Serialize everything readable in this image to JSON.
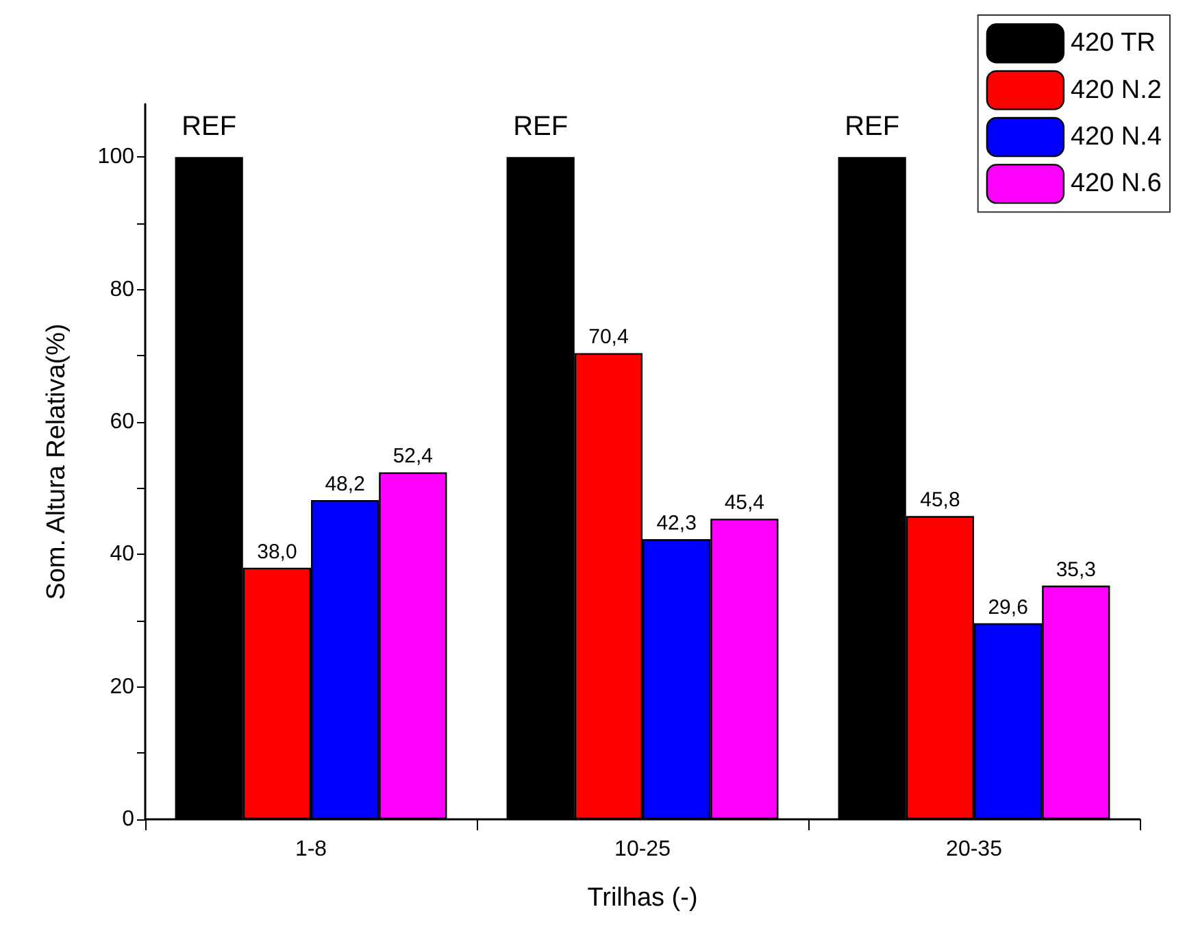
{
  "chart_data": {
    "type": "bar",
    "xlabel": "Trilhas (-)",
    "ylabel": "Som. Altura Relativa(%)",
    "categories": [
      "1-8",
      "10-25",
      "20-35"
    ],
    "series": [
      {
        "name": "420 TR",
        "color": "#000000",
        "values": [
          100,
          100,
          100
        ],
        "value_labels": [
          "REF",
          "REF",
          "REF"
        ]
      },
      {
        "name": "420 N.2",
        "color": "#ff0000",
        "values": [
          38.0,
          70.4,
          45.8
        ],
        "value_labels": [
          "38,0",
          "70,4",
          "45,8"
        ]
      },
      {
        "name": "420 N.4",
        "color": "#0000ff",
        "values": [
          48.2,
          42.3,
          29.6
        ],
        "value_labels": [
          "48,2",
          "42,3",
          "29,6"
        ]
      },
      {
        "name": "420 N.6",
        "color": "#ff00ff",
        "values": [
          52.4,
          45.4,
          35.3
        ],
        "value_labels": [
          "52,4",
          "45,4",
          "35,3"
        ]
      }
    ],
    "ylim": [
      0,
      108
    ],
    "yticks": [
      0,
      20,
      40,
      60,
      80,
      100
    ],
    "grid": false,
    "legend": "top right"
  }
}
